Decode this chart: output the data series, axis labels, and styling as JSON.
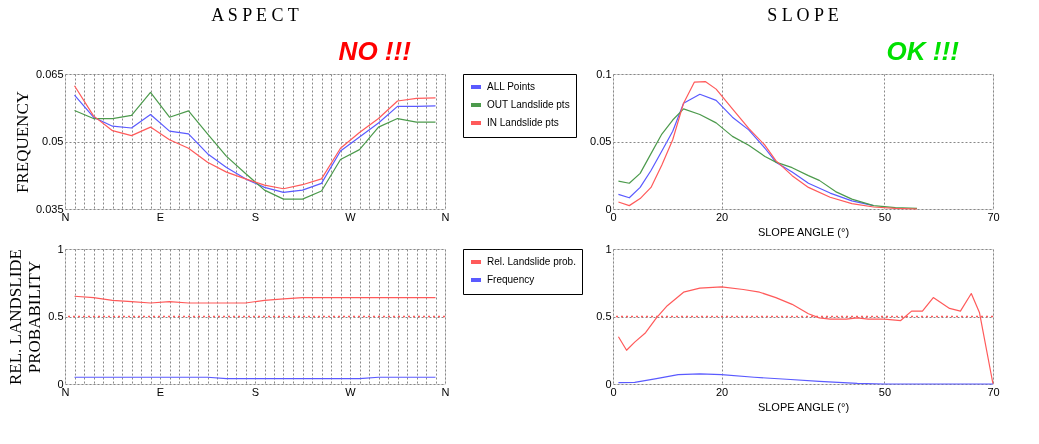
{
  "chart_data": [
    {
      "type": "line",
      "title": "A S P E C T",
      "ylabel": "FREQUENCY",
      "annotations": [
        "NO !!!"
      ],
      "ylim": [
        0.035,
        0.065
      ],
      "categories": [
        "N",
        null,
        null,
        null,
        null,
        null,
        null,
        null,
        null,
        null,
        "E",
        null,
        null,
        null,
        null,
        null,
        null,
        null,
        null,
        null,
        "S",
        null,
        null,
        null,
        null,
        null,
        null,
        null,
        null,
        null,
        "W",
        null,
        null,
        null,
        null,
        null,
        null,
        null,
        null,
        null,
        "N"
      ],
      "yticks": [
        0.035,
        0.05,
        0.065
      ],
      "grid": true,
      "legend": "right",
      "series": [
        {
          "name": "ALL Points",
          "color": "#5a5aff",
          "values": [
            null,
            0.0603,
            null,
            0.0554,
            null,
            0.0534,
            null,
            0.053,
            null,
            0.056,
            null,
            0.0523,
            null,
            0.0517,
            null,
            0.0473,
            null,
            0.0442,
            null,
            0.0417,
            null,
            0.0398,
            null,
            0.0387,
            null,
            0.0392,
            null,
            0.0407,
            null,
            0.0479,
            null,
            0.051,
            null,
            0.0541,
            null,
            0.0578,
            null,
            0.0578,
            null,
            0.0579,
            null
          ]
        },
        {
          "name": "OUT Landslide pts",
          "color": "#4c9a4c",
          "values": [
            null,
            0.0569,
            null,
            0.0551,
            null,
            0.0551,
            null,
            0.0558,
            null,
            0.0609,
            null,
            0.0554,
            null,
            0.0568,
            null,
            0.0517,
            null,
            0.0467,
            null,
            0.0429,
            null,
            0.0392,
            null,
            0.0372,
            null,
            0.0372,
            null,
            0.039,
            null,
            0.046,
            null,
            0.0482,
            null,
            0.0532,
            null,
            0.0551,
            null,
            0.0543,
            null,
            0.0543,
            null
          ]
        },
        {
          "name": "IN Landslide pts",
          "color": "#ff5a5a",
          "values": [
            null,
            0.0624,
            null,
            0.0557,
            null,
            0.0524,
            null,
            0.0513,
            null,
            0.0532,
            null,
            0.0504,
            null,
            0.0485,
            null,
            0.0454,
            null,
            0.0432,
            null,
            0.0417,
            null,
            0.0403,
            null,
            0.0395,
            null,
            0.0404,
            null,
            0.0417,
            null,
            0.0485,
            null,
            0.052,
            null,
            0.0551,
            null,
            0.059,
            null,
            0.0596,
            null,
            0.0597,
            null
          ]
        }
      ]
    },
    {
      "type": "line",
      "title": "S L O P E",
      "xlabel": "SLOPE ANGLE (°)",
      "annotations": [
        "OK !!!"
      ],
      "xlim": [
        0,
        70
      ],
      "ylim": [
        0,
        0.1
      ],
      "xticks": [
        0,
        20,
        50,
        70
      ],
      "yticks": [
        0,
        0.05,
        0.1
      ],
      "grid": true,
      "series": [
        {
          "color": "#5a5aff",
          "x": [
            1,
            3,
            5,
            7,
            9,
            11,
            13,
            16,
            19,
            22,
            25,
            28,
            30,
            33,
            36,
            40,
            44,
            48
          ],
          "values": [
            0.0108,
            0.0083,
            0.016,
            0.0285,
            0.043,
            0.0576,
            0.0784,
            0.085,
            0.0805,
            0.068,
            0.0586,
            0.045,
            0.0347,
            0.0274,
            0.0191,
            0.0118,
            0.006,
            0.0025
          ]
        },
        {
          "color": "#4c9a4c",
          "x": [
            1,
            3,
            5,
            7,
            9,
            11,
            13,
            16,
            19,
            22,
            25,
            28,
            30,
            33,
            36,
            38,
            41,
            44,
            48,
            52,
            56
          ],
          "values": [
            0.0206,
            0.0191,
            0.0264,
            0.041,
            0.0555,
            0.0659,
            0.0742,
            0.07,
            0.0638,
            0.0538,
            0.0472,
            0.0389,
            0.0347,
            0.0306,
            0.0247,
            0.0212,
            0.0129,
            0.0073,
            0.0025,
            0.001,
            0.0004
          ]
        },
        {
          "color": "#ff5a5a",
          "x": [
            1,
            3,
            5,
            7,
            9,
            11,
            13,
            15,
            17,
            19,
            22,
            25,
            28,
            30,
            33,
            36,
            40,
            44,
            48,
            52,
            56
          ],
          "values": [
            0.0052,
            0.0025,
            0.0077,
            0.016,
            0.0326,
            0.0513,
            0.0784,
            0.094,
            0.0944,
            0.0888,
            0.0742,
            0.0597,
            0.0472,
            0.0358,
            0.0247,
            0.016,
            0.0087,
            0.004,
            0.0015,
            0.0004,
            0
          ]
        }
      ]
    },
    {
      "type": "line",
      "ylabel": "REL. LANDSLIDE PROBABILITY",
      "ylim": [
        0,
        1
      ],
      "categories": [
        "N",
        null,
        null,
        null,
        null,
        null,
        null,
        null,
        null,
        null,
        "E",
        null,
        null,
        null,
        null,
        null,
        null,
        null,
        null,
        null,
        "S",
        null,
        null,
        null,
        null,
        null,
        null,
        null,
        null,
        null,
        "W",
        null,
        null,
        null,
        null,
        null,
        null,
        null,
        null,
        null,
        "N"
      ],
      "yticks": [
        0,
        0.5,
        1
      ],
      "grid": true,
      "legend": "right",
      "ref_lines": [
        {
          "axis": "y",
          "value": 0.5,
          "color": "#ff5a5a",
          "line_style": "dotted"
        }
      ],
      "series": [
        {
          "name": "Rel. Landslide prob.",
          "color": "#ff5a5a",
          "values": [
            null,
            0.65,
            null,
            0.64,
            null,
            0.62,
            null,
            0.61,
            null,
            0.6,
            null,
            0.61,
            null,
            0.6,
            null,
            0.6,
            null,
            0.6,
            null,
            0.6,
            null,
            0.62,
            null,
            0.63,
            null,
            0.64,
            null,
            0.64,
            null,
            0.64,
            null,
            0.64,
            null,
            0.64,
            null,
            0.64,
            null,
            0.64,
            null,
            0.64,
            null
          ]
        },
        {
          "name": "Frequency",
          "color": "#5a5aff",
          "values": [
            null,
            0.05,
            null,
            0.05,
            null,
            0.05,
            null,
            0.05,
            null,
            0.05,
            null,
            0.05,
            null,
            0.05,
            null,
            0.05,
            null,
            0.04,
            null,
            0.04,
            null,
            0.04,
            null,
            0.04,
            null,
            0.04,
            null,
            0.04,
            null,
            0.04,
            null,
            0.04,
            null,
            0.05,
            null,
            0.05,
            null,
            0.05,
            null,
            0.05,
            null
          ]
        }
      ]
    },
    {
      "type": "line",
      "xlabel": "SLOPE ANGLE (°)",
      "xlim": [
        0,
        70
      ],
      "ylim": [
        0,
        1
      ],
      "xticks": [
        0,
        20,
        50,
        70
      ],
      "yticks": [
        0,
        0.5,
        1
      ],
      "grid": true,
      "ref_lines": [
        {
          "axis": "y",
          "value": 0.5,
          "color": "#ff5a5a",
          "line_style": "dotted"
        }
      ],
      "series": [
        {
          "color": "#ff5a5a",
          "x": [
            1,
            2.5,
            4,
            6,
            8,
            10,
            13,
            16,
            20,
            24,
            27,
            30,
            33,
            36,
            38,
            40,
            43,
            45,
            47,
            50,
            53,
            55,
            57,
            59,
            62,
            64,
            66,
            67.5,
            70
          ],
          "values": [
            0.35,
            0.25,
            0.31,
            0.38,
            0.49,
            0.58,
            0.68,
            0.71,
            0.72,
            0.7,
            0.68,
            0.64,
            0.59,
            0.52,
            0.49,
            0.48,
            0.48,
            0.49,
            0.48,
            0.48,
            0.47,
            0.54,
            0.54,
            0.64,
            0.56,
            0.54,
            0.67,
            0.53,
            0
          ]
        },
        {
          "color": "#5a5aff",
          "x": [
            1,
            4,
            8,
            12,
            16,
            20,
            26,
            32,
            38,
            45,
            50,
            70
          ],
          "values": [
            0.01,
            0.012,
            0.04,
            0.07,
            0.075,
            0.07,
            0.05,
            0.035,
            0.02,
            0.005,
            0,
            0
          ]
        }
      ]
    }
  ]
}
